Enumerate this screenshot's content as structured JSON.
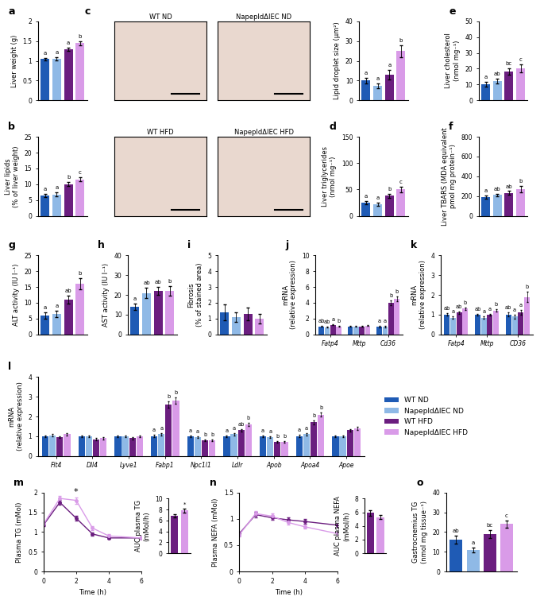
{
  "chart_data": [
    {
      "type": "bar",
      "panel": "a",
      "ylabel": "Liver weight (g)",
      "ylim": [
        0,
        2
      ],
      "yticks": [
        0,
        0.5,
        1,
        1.5,
        2
      ],
      "tick_labels": "y",
      "values": [
        1.05,
        1.05,
        1.3,
        1.45
      ],
      "errors": [
        0.03,
        0.04,
        0.04,
        0.05
      ],
      "colors": [
        "#1f5bb5",
        "#8fb9e6",
        "#6b1e7f",
        "#d99be8"
      ],
      "annotations": [
        "a",
        "a",
        "a",
        "b"
      ]
    },
    {
      "type": "bar",
      "panel": "b",
      "ylabel": "Liver lipids\n(% of liver weight)",
      "ylim": [
        0,
        25
      ],
      "yticks": [
        0,
        5,
        10,
        15,
        20,
        25
      ],
      "tick_labels": "y",
      "values": [
        6.5,
        6.8,
        10,
        11.5
      ],
      "errors": [
        0.5,
        0.6,
        0.6,
        0.6
      ],
      "colors": [
        "#1f5bb5",
        "#8fb9e6",
        "#6b1e7f",
        "#d99be8"
      ],
      "annotations": [
        "a",
        "a",
        "b",
        "c"
      ]
    },
    {
      "type": "image",
      "panel": "c",
      "panels": [
        "WT ND",
        "NapepldΔIEC ND",
        "WT HFD",
        "NapepldΔIEC HFD"
      ]
    },
    {
      "type": "bar",
      "ylabel": "Lipid droplet size (µm²)",
      "ylim": [
        0,
        40
      ],
      "yticks": [
        0,
        10,
        20,
        30,
        40
      ],
      "tick_labels": "y",
      "values": [
        10,
        7.5,
        13,
        25
      ],
      "errors": [
        1.5,
        1.2,
        2.5,
        3
      ],
      "colors": [
        "#1f5bb5",
        "#8fb9e6",
        "#6b1e7f",
        "#d99be8"
      ],
      "annotations": [
        "a",
        "a",
        "a",
        "b"
      ]
    },
    {
      "type": "bar",
      "panel": "d",
      "ylabel": "Liver triglycerides\n(nmol mg⁻¹)",
      "ylim": [
        0,
        150
      ],
      "yticks": [
        0,
        50,
        100,
        150
      ],
      "tick_labels": "y",
      "values": [
        25,
        22,
        38,
        50
      ],
      "errors": [
        3,
        3,
        4,
        5
      ],
      "colors": [
        "#1f5bb5",
        "#8fb9e6",
        "#6b1e7f",
        "#d99be8"
      ],
      "annotations": [
        "a",
        "a",
        "b",
        "c"
      ]
    },
    {
      "type": "bar",
      "panel": "e",
      "ylabel": "Liver cholesterol\n(nmol mg⁻¹)",
      "ylim": [
        0,
        50
      ],
      "yticks": [
        0,
        10,
        20,
        30,
        40,
        50
      ],
      "tick_labels": "y",
      "values": [
        10,
        12,
        18,
        20
      ],
      "errors": [
        1.5,
        1.5,
        2,
        2.5
      ],
      "colors": [
        "#1f5bb5",
        "#8fb9e6",
        "#6b1e7f",
        "#d99be8"
      ],
      "annotations": [
        "a",
        "ab",
        "bc",
        "c"
      ]
    },
    {
      "type": "bar",
      "panel": "f",
      "ylabel": "Liver TBARS (MDA equivalent\npmol mg protein⁻¹)",
      "ylim": [
        0,
        800
      ],
      "yticks": [
        0,
        200,
        400,
        600,
        800
      ],
      "tick_labels": "y",
      "values": [
        190,
        210,
        230,
        270
      ],
      "errors": [
        15,
        15,
        20,
        30
      ],
      "colors": [
        "#1f5bb5",
        "#8fb9e6",
        "#6b1e7f",
        "#d99be8"
      ],
      "annotations": [
        "a",
        "ab",
        "ab",
        "b"
      ]
    },
    {
      "type": "bar",
      "panel": "g",
      "ylabel": "ALT activity (IU l⁻¹)",
      "ylim": [
        0,
        25
      ],
      "yticks": [
        0,
        5,
        10,
        15,
        20,
        25
      ],
      "tick_labels": "y",
      "values": [
        6,
        6.5,
        11,
        16
      ],
      "errors": [
        1,
        1,
        1.2,
        1.8
      ],
      "colors": [
        "#1f5bb5",
        "#8fb9e6",
        "#6b1e7f",
        "#d99be8"
      ],
      "annotations": [
        "a",
        "a",
        "ab",
        "b"
      ]
    },
    {
      "type": "bar",
      "panel": "h",
      "ylabel": "AST activity (IU l⁻¹)",
      "ylim": [
        0,
        40
      ],
      "yticks": [
        0,
        10,
        20,
        30,
        40
      ],
      "tick_labels": "y",
      "values": [
        14,
        21,
        22,
        22
      ],
      "errors": [
        1.5,
        2.5,
        2,
        2.5
      ],
      "colors": [
        "#1f5bb5",
        "#8fb9e6",
        "#6b1e7f",
        "#d99be8"
      ],
      "annotations": [
        "a",
        "ab",
        "ab",
        "b"
      ]
    },
    {
      "type": "bar",
      "panel": "i",
      "ylabel": "Fibrosis\n(% of stained area)",
      "ylim": [
        0,
        5
      ],
      "yticks": [
        0,
        1,
        2,
        3,
        4,
        5
      ],
      "tick_labels": "y",
      "values": [
        1.4,
        1.1,
        1.3,
        1.0
      ],
      "errors": [
        0.5,
        0.3,
        0.4,
        0.3
      ],
      "colors": [
        "#1f5bb5",
        "#8fb9e6",
        "#6b1e7f",
        "#d99be8"
      ]
    },
    {
      "type": "grouped_bar",
      "panel": "j",
      "ylabel": "mRNA\n(relative expression)",
      "ylim": [
        0,
        10
      ],
      "yticks": [
        0,
        2,
        4,
        6,
        8,
        10
      ],
      "categories": [
        "Fatp4",
        "Mttp",
        "Cd36"
      ],
      "series": [
        {
          "color": "#1f5bb5",
          "values": [
            1,
            1,
            1
          ],
          "errors": [
            0.05,
            0.05,
            0.1
          ],
          "annotations": [
            "ab",
            null,
            "a"
          ]
        },
        {
          "color": "#8fb9e6",
          "values": [
            0.9,
            1.0,
            1.0
          ],
          "errors": [
            0.05,
            0.05,
            0.1
          ],
          "annotations": [
            "ab",
            null,
            "a"
          ]
        },
        {
          "color": "#6b1e7f",
          "values": [
            1.2,
            1.0,
            4.0
          ],
          "errors": [
            0.06,
            0.05,
            0.3
          ],
          "annotations": [
            "a",
            null,
            "b"
          ]
        },
        {
          "color": "#d99be8",
          "values": [
            1.0,
            1.1,
            4.5
          ],
          "errors": [
            0.05,
            0.06,
            0.35
          ],
          "annotations": [
            "b",
            null,
            "b"
          ]
        }
      ]
    },
    {
      "type": "grouped_bar",
      "panel": "k",
      "ylabel": "mRNA\n(relative expression)",
      "ylim": [
        0,
        4
      ],
      "yticks": [
        0,
        1,
        2,
        3,
        4
      ],
      "categories": [
        "Fatp4",
        "Mttp",
        "CD36"
      ],
      "series": [
        {
          "color": "#1f5bb5",
          "values": [
            1,
            1,
            1
          ],
          "errors": [
            0.06,
            0.05,
            0.1
          ],
          "annotations": [
            "ab",
            "ab",
            "ab"
          ]
        },
        {
          "color": "#8fb9e6",
          "values": [
            0.85,
            0.85,
            0.9
          ],
          "errors": [
            0.05,
            0.05,
            0.1
          ],
          "annotations": [
            "a",
            "a",
            "a"
          ]
        },
        {
          "color": "#6b1e7f",
          "values": [
            1.1,
            1.0,
            1.1
          ],
          "errors": [
            0.06,
            0.05,
            0.12
          ],
          "annotations": [
            "ab",
            "a",
            "a"
          ]
        },
        {
          "color": "#d99be8",
          "values": [
            1.3,
            1.2,
            1.9
          ],
          "errors": [
            0.07,
            0.06,
            0.25
          ],
          "annotations": [
            "b",
            "b",
            "b"
          ]
        }
      ]
    },
    {
      "type": "grouped_bar",
      "panel": "l",
      "ylabel": "mRNA\n(relative expression)",
      "ylim": [
        0,
        4
      ],
      "yticks": [
        0,
        1,
        2,
        3,
        4
      ],
      "legend": "center left",
      "categories": [
        "Flt4",
        "Dll4",
        "Lyve1",
        "Fabp1",
        "Npc1l1",
        "Ldlr",
        "Apob",
        "Apoa4",
        "Apoe"
      ],
      "series": [
        {
          "name": "WT ND",
          "color": "#1f5bb5",
          "values": [
            1,
            1,
            1,
            1,
            1,
            1,
            1,
            1,
            1
          ],
          "errors": [
            0.05,
            0.05,
            0.05,
            0.06,
            0.05,
            0.05,
            0.05,
            0.06,
            0.05
          ],
          "annotations": [
            null,
            null,
            null,
            "a",
            "a",
            "a",
            "a",
            "a",
            null
          ]
        },
        {
          "name": "NapepldΔIEC ND",
          "color": "#8fb9e6",
          "values": [
            1.05,
            1.0,
            1.0,
            1.1,
            0.95,
            1.1,
            0.95,
            1.1,
            1.0
          ],
          "errors": [
            0.05,
            0.05,
            0.05,
            0.06,
            0.05,
            0.06,
            0.05,
            0.06,
            0.05
          ],
          "annotations": [
            null,
            null,
            null,
            "a",
            "a",
            "a",
            "a",
            "a",
            null
          ]
        },
        {
          "name": "WT HFD",
          "color": "#6b1e7f",
          "values": [
            0.95,
            0.85,
            0.9,
            2.6,
            0.8,
            1.3,
            0.7,
            1.7,
            1.3
          ],
          "errors": [
            0.05,
            0.05,
            0.05,
            0.15,
            0.05,
            0.07,
            0.04,
            0.1,
            0.06
          ],
          "annotations": [
            null,
            null,
            null,
            "b",
            "b",
            "ab",
            "b",
            "b",
            null
          ]
        },
        {
          "name": "NapepldΔIEC HFD",
          "color": "#d99be8",
          "values": [
            1.1,
            0.9,
            1.0,
            2.8,
            0.8,
            1.6,
            0.7,
            2.1,
            1.4
          ],
          "errors": [
            0.06,
            0.05,
            0.05,
            0.15,
            0.05,
            0.08,
            0.04,
            0.1,
            0.07
          ],
          "annotations": [
            null,
            null,
            null,
            "b",
            "b",
            "b",
            "b",
            "b",
            null
          ]
        }
      ]
    },
    {
      "type": "line",
      "panel": "m",
      "ylabel": "Plasma TG (mMol)",
      "xlabel": "Time (h)",
      "xlim": [
        0,
        6
      ],
      "xticks": [
        0,
        2,
        4,
        6
      ],
      "ylim": [
        0,
        2
      ],
      "yticks": [
        0,
        0.5,
        1,
        1.5,
        2
      ],
      "marker": "o",
      "x": [
        0,
        1,
        2,
        3,
        4,
        6
      ],
      "series": [
        {
          "color": "#6b1e7f",
          "values": [
            1.18,
            1.75,
            1.35,
            0.95,
            0.85,
            0.85
          ],
          "errors": [
            0.04,
            0.06,
            0.06,
            0.04,
            0.03,
            0.03
          ]
        },
        {
          "color": "#d99be8",
          "values": [
            1.2,
            1.85,
            1.8,
            1.1,
            0.9,
            0.85
          ],
          "errors": [
            0.04,
            0.07,
            0.08,
            0.05,
            0.04,
            0.03
          ]
        }
      ],
      "annotations": [
        {
          "x": 2,
          "text": "*"
        }
      ]
    },
    {
      "type": "bar",
      "ylabel": "AUC plasma TG\n(mMol/h)",
      "ylim": [
        0,
        10
      ],
      "yticks": [
        0,
        2,
        4,
        6,
        8,
        10
      ],
      "tick_labels": "y",
      "values": [
        6.8,
        7.8
      ],
      "errors": [
        0.3,
        0.4
      ],
      "colors": [
        "#6b1e7f",
        "#d99be8"
      ],
      "annotations": [
        null,
        "*"
      ]
    },
    {
      "type": "line",
      "panel": "n",
      "ylabel": "Plasma NEFA (mMol)",
      "xlabel": "Time (h)",
      "xlim": [
        0,
        6
      ],
      "xticks": [
        0,
        2,
        4,
        6
      ],
      "ylim": [
        0,
        1.5
      ],
      "yticks": [
        0,
        0.5,
        1,
        1.5
      ],
      "marker": "o",
      "x": [
        0,
        1,
        2,
        3,
        4,
        6
      ],
      "series": [
        {
          "color": "#6b1e7f",
          "values": [
            0.72,
            1.08,
            1.02,
            0.98,
            0.95,
            0.88
          ],
          "errors": [
            0.04,
            0.05,
            0.04,
            0.04,
            0.04,
            0.03
          ]
        },
        {
          "color": "#d99be8",
          "values": [
            0.7,
            1.1,
            1.05,
            0.93,
            0.85,
            0.72
          ],
          "errors": [
            0.04,
            0.05,
            0.05,
            0.04,
            0.04,
            0.03
          ]
        }
      ]
    },
    {
      "type": "bar",
      "ylabel": "AUC plasma NEFA\n(mMol/h)",
      "ylim": [
        0,
        8
      ],
      "yticks": [
        0,
        2,
        4,
        6,
        8
      ],
      "tick_labels": "y",
      "values": [
        5.9,
        5.3
      ],
      "errors": [
        0.4,
        0.3
      ],
      "colors": [
        "#6b1e7f",
        "#d99be8"
      ]
    },
    {
      "type": "bar",
      "panel": "o",
      "ylabel": "Gastrocnemius TG\n(nmol mg tissue⁻¹)",
      "ylim": [
        0,
        40
      ],
      "yticks": [
        0,
        10,
        20,
        30,
        40
      ],
      "tick_labels": "y",
      "values": [
        16,
        11,
        19,
        24
      ],
      "errors": [
        2,
        1.2,
        2,
        1.8
      ],
      "colors": [
        "#1f5bb5",
        "#8fb9e6",
        "#6b1e7f",
        "#d99be8"
      ],
      "annotations": [
        "ab",
        "a",
        "bc",
        "c"
      ]
    }
  ]
}
